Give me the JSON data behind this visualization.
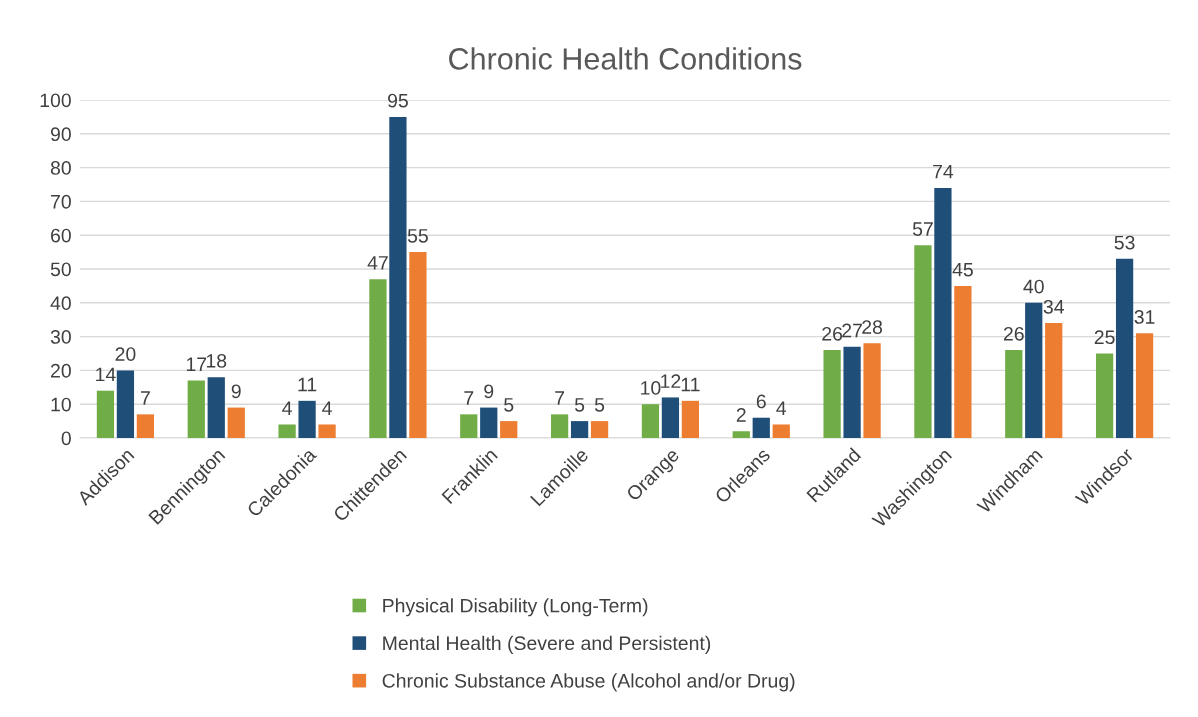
{
  "chart_data": {
    "type": "bar",
    "title": "Chronic Health Conditions",
    "categories": [
      "Addison",
      "Bennington",
      "Caledonia",
      "Chittenden",
      "Franklin",
      "Lamoille",
      "Orange",
      "Orleans",
      "Rutland",
      "Washington",
      "Windham",
      "Windsor"
    ],
    "series": [
      {
        "name": "Physical Disability (Long-Term)",
        "color": "#70ad47",
        "values": [
          14,
          17,
          4,
          47,
          7,
          7,
          10,
          2,
          26,
          57,
          26,
          25
        ]
      },
      {
        "name": "Mental Health (Severe and Persistent)",
        "color": "#1f4e79",
        "values": [
          20,
          18,
          11,
          95,
          9,
          5,
          12,
          6,
          27,
          74,
          40,
          53
        ]
      },
      {
        "name": "Chronic Substance Abuse (Alcohol and/or Drug)",
        "color": "#ed7d31",
        "values": [
          7,
          9,
          4,
          55,
          5,
          5,
          11,
          4,
          28,
          45,
          34,
          31
        ]
      }
    ],
    "ylim": [
      0,
      100
    ],
    "yticks": [
      0,
      10,
      20,
      30,
      40,
      50,
      60,
      70,
      80,
      90,
      100
    ],
    "grid": "y",
    "legend": "bottom",
    "data_labels": true
  }
}
